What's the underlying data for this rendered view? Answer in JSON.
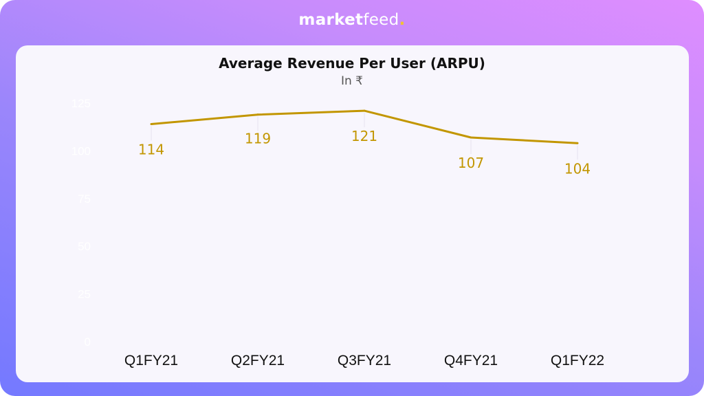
{
  "brand": {
    "bold": "market",
    "regular": "feed",
    "dot": "."
  },
  "colors": {
    "line": "#c29600",
    "label": "#c29600",
    "axis_tick": "#ffffff",
    "leader": "#e6e3ee"
  },
  "chart_data": {
    "type": "line",
    "title": "Average Revenue Per User (ARPU)",
    "subtitle": "In ₹",
    "xlabel": "",
    "ylabel": "",
    "categories": [
      "Q1FY21",
      "Q2FY21",
      "Q3FY21",
      "Q4FY21",
      "Q1FY22"
    ],
    "series": [
      {
        "name": "ARPU",
        "values": [
          114,
          119,
          121,
          107,
          104
        ]
      }
    ],
    "ylim": [
      0,
      125
    ],
    "yticks": [
      0,
      25,
      50,
      75,
      100,
      125
    ],
    "grid": false,
    "legend": "none",
    "data_labels": [
      "114",
      "119",
      "121",
      "107",
      "104"
    ]
  }
}
